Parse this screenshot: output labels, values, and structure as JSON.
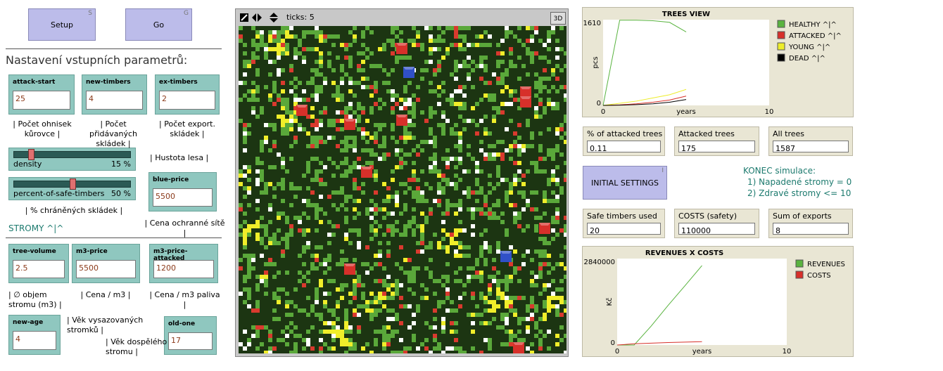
{
  "buttons": [
    {
      "label": "Setup",
      "key": "S"
    },
    {
      "label": "Go",
      "key": "G"
    },
    {
      "label": "INITIAL SETTINGS",
      "key": "I"
    }
  ],
  "headings": [
    "Nastavení vstupních parametrů:",
    "STROMY ^|^"
  ],
  "inputs": [
    {
      "label": "attack-start",
      "value": 25
    },
    {
      "label": "new-timbers",
      "value": 4
    },
    {
      "label": "ex-timbers",
      "value": 2
    },
    {
      "label": "blue-price",
      "value": 5500
    },
    {
      "label": "tree-volume",
      "value": 2.5
    },
    {
      "label": "m3-price",
      "value": 5500
    },
    {
      "label": "m3-price-attacked",
      "value": 1200
    },
    {
      "label": "new-age",
      "value": 4
    },
    {
      "label": "old-one",
      "value": 17
    }
  ],
  "sliders": [
    {
      "label": "density",
      "value": "15 %"
    },
    {
      "label": "percent-of-safe-timbers",
      "value": "50 %"
    }
  ],
  "notes": [
    [
      "| Počet ohnisek",
      "kůrovce |"
    ],
    [
      "| Počet přidávaných",
      "skládek |"
    ],
    [
      "| Počet export.",
      "skládek |"
    ],
    [
      "| Hustota lesa |"
    ],
    [
      "| % chráněných skládek |"
    ],
    [
      "| Cena ochranné sítě |"
    ],
    [
      "| ∅ objem",
      "stromu (m3) |"
    ],
    [
      "| Cena / m3 |"
    ],
    [
      "| Cena / m3 paliva |"
    ],
    [
      "| Věk vysazovaných",
      "stromků |"
    ],
    [
      "| Věk dospělého",
      "stromu |"
    ]
  ],
  "view": {
    "ticks": "ticks: 5",
    "mode_button": "3D"
  },
  "monitors": [
    {
      "label": "% of attacked trees",
      "value": 0.11
    },
    {
      "label": "Attacked trees",
      "value": 175
    },
    {
      "label": "All trees",
      "value": 1587
    },
    {
      "label": "Safe timbers used",
      "value": 20
    },
    {
      "label": "COSTS (safety)",
      "value": 110000
    },
    {
      "label": "Sum of exports",
      "value": 8
    }
  ],
  "end_conditions": [
    "KONEC simulace:",
    "1)  Napadené stromy = 0",
    "2)  Zdravé stromy  <= 10"
  ],
  "plots": [
    {
      "type": "line",
      "title": "TREES VIEW",
      "y_label": "pcs",
      "x_label": "years",
      "xlim": [
        0,
        10
      ],
      "ylim": [
        0,
        1610
      ],
      "xticks": [
        0,
        10
      ],
      "yticks": [
        0,
        1610
      ],
      "x": [
        0,
        1,
        2,
        3,
        4,
        5
      ],
      "series": [
        {
          "name": "HEALTHY  ^|^",
          "color": "#59b33f",
          "values": [
            0,
            1600,
            1600,
            1590,
            1560,
            1380
          ]
        },
        {
          "name": "ATTACKED  ^|^",
          "color": "#d7302a",
          "values": [
            0,
            10,
            30,
            60,
            100,
            175
          ]
        },
        {
          "name": "YOUNG  ^|^",
          "color": "#eded2a",
          "values": [
            0,
            40,
            80,
            140,
            200,
            300
          ]
        },
        {
          "name": "DEAD ^|^",
          "color": "#000000",
          "values": [
            0,
            5,
            15,
            30,
            60,
            110
          ]
        }
      ]
    },
    {
      "type": "line",
      "title": "REVENUES X COSTS",
      "y_label": "Kč",
      "x_label": "years",
      "xlim": [
        0,
        10
      ],
      "ylim": [
        0,
        2840000
      ],
      "xticks": [
        0,
        10
      ],
      "yticks": [
        0,
        2840000
      ],
      "x": [
        0,
        1,
        2,
        3,
        4,
        5
      ],
      "series": [
        {
          "name": "REVENUES",
          "color": "#59b33f",
          "values": [
            0,
            0,
            620000,
            1300000,
            1950000,
            2610000
          ]
        },
        {
          "name": "COSTS",
          "color": "#d7302a",
          "values": [
            0,
            40000,
            60000,
            80000,
            95000,
            110000
          ]
        }
      ]
    }
  ]
}
